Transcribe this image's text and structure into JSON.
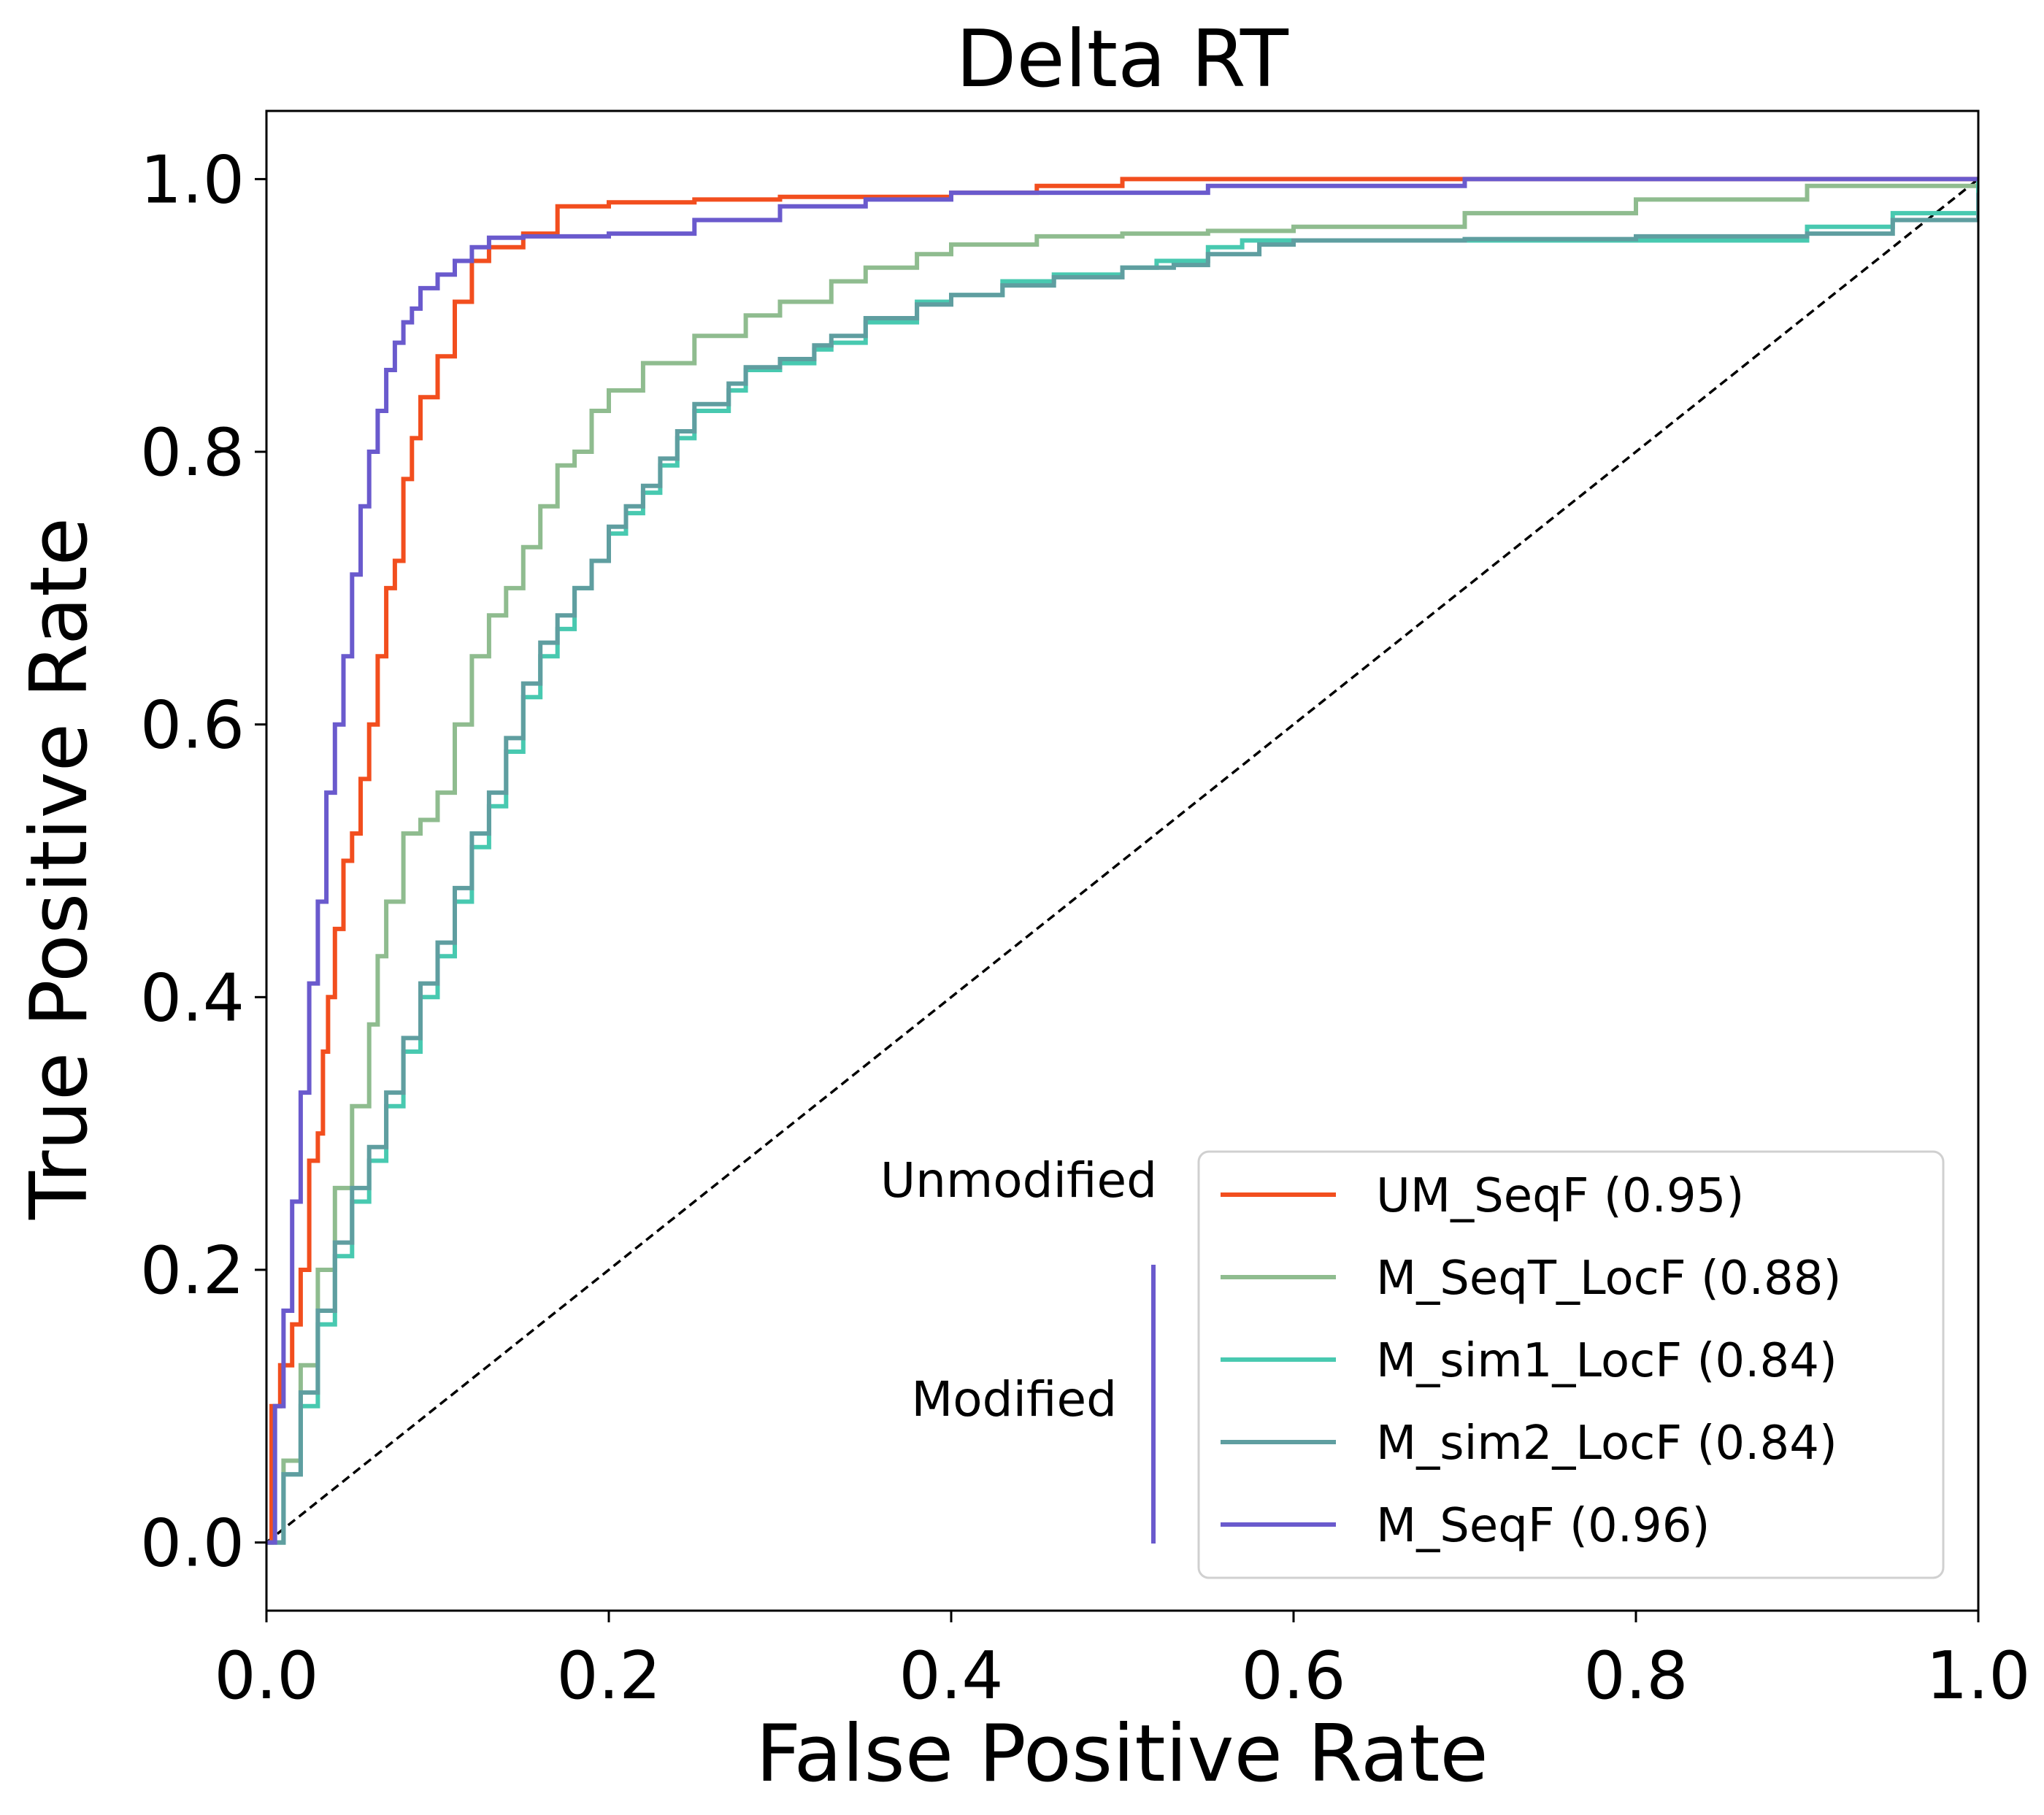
{
  "chart_data": {
    "type": "line",
    "title": "Delta RT",
    "xlabel": "False Positive Rate",
    "ylabel": "True Positive Rate",
    "xlim": [
      0.0,
      1.0
    ],
    "ylim": [
      -0.05,
      1.05
    ],
    "xticks": [
      "0.0",
      "0.2",
      "0.4",
      "0.6",
      "0.8",
      "1.0"
    ],
    "yticks": [
      "0.0",
      "0.2",
      "0.4",
      "0.6",
      "0.8",
      "1.0"
    ],
    "grid": false,
    "legend_position": "lower-right",
    "legend_groups": [
      {
        "label": "Unmodified",
        "series": [
          0
        ]
      },
      {
        "label": "Modified",
        "series": [
          1,
          2,
          3,
          4
        ],
        "bar_color": "#6A5ACD"
      }
    ],
    "diagonal": {
      "style": "dashed",
      "color": "#000000",
      "points": [
        [
          0,
          0
        ],
        [
          1,
          1
        ]
      ]
    },
    "series": [
      {
        "name": "UM_SeqF (0.95)",
        "color": "#F24E1E",
        "points": [
          [
            0,
            0
          ],
          [
            0.003,
            0.1
          ],
          [
            0.008,
            0.13
          ],
          [
            0.015,
            0.16
          ],
          [
            0.02,
            0.2
          ],
          [
            0.025,
            0.28
          ],
          [
            0.03,
            0.3
          ],
          [
            0.033,
            0.36
          ],
          [
            0.036,
            0.4
          ],
          [
            0.04,
            0.45
          ],
          [
            0.045,
            0.5
          ],
          [
            0.05,
            0.52
          ],
          [
            0.055,
            0.56
          ],
          [
            0.06,
            0.6
          ],
          [
            0.065,
            0.65
          ],
          [
            0.07,
            0.7
          ],
          [
            0.075,
            0.72
          ],
          [
            0.08,
            0.78
          ],
          [
            0.085,
            0.81
          ],
          [
            0.09,
            0.84
          ],
          [
            0.1,
            0.87
          ],
          [
            0.11,
            0.91
          ],
          [
            0.12,
            0.94
          ],
          [
            0.13,
            0.95
          ],
          [
            0.15,
            0.96
          ],
          [
            0.17,
            0.98
          ],
          [
            0.2,
            0.983
          ],
          [
            0.25,
            0.985
          ],
          [
            0.3,
            0.987
          ],
          [
            0.4,
            0.99
          ],
          [
            0.45,
            0.995
          ],
          [
            0.5,
            1.0
          ],
          [
            0.7,
            1.0
          ],
          [
            1.0,
            1.0
          ]
        ]
      },
      {
        "name": "M_SeqT_LocF (0.88)",
        "color": "#8FBC8F",
        "points": [
          [
            0,
            0
          ],
          [
            0.01,
            0.06
          ],
          [
            0.02,
            0.13
          ],
          [
            0.03,
            0.2
          ],
          [
            0.04,
            0.26
          ],
          [
            0.05,
            0.32
          ],
          [
            0.06,
            0.38
          ],
          [
            0.065,
            0.43
          ],
          [
            0.07,
            0.47
          ],
          [
            0.08,
            0.52
          ],
          [
            0.09,
            0.53
          ],
          [
            0.1,
            0.55
          ],
          [
            0.11,
            0.6
          ],
          [
            0.12,
            0.65
          ],
          [
            0.13,
            0.68
          ],
          [
            0.14,
            0.7
          ],
          [
            0.15,
            0.73
          ],
          [
            0.16,
            0.76
          ],
          [
            0.17,
            0.79
          ],
          [
            0.18,
            0.8
          ],
          [
            0.19,
            0.83
          ],
          [
            0.2,
            0.845
          ],
          [
            0.22,
            0.865
          ],
          [
            0.25,
            0.885
          ],
          [
            0.28,
            0.9
          ],
          [
            0.3,
            0.91
          ],
          [
            0.33,
            0.925
          ],
          [
            0.35,
            0.935
          ],
          [
            0.38,
            0.945
          ],
          [
            0.4,
            0.952
          ],
          [
            0.45,
            0.958
          ],
          [
            0.5,
            0.96
          ],
          [
            0.55,
            0.962
          ],
          [
            0.6,
            0.965
          ],
          [
            0.7,
            0.975
          ],
          [
            0.8,
            0.985
          ],
          [
            0.9,
            0.995
          ],
          [
            1.0,
            1.0
          ]
        ]
      },
      {
        "name": "M_sim1_LocF (0.84)",
        "color": "#48C9B0",
        "points": [
          [
            0,
            0
          ],
          [
            0.01,
            0.05
          ],
          [
            0.02,
            0.1
          ],
          [
            0.03,
            0.16
          ],
          [
            0.04,
            0.21
          ],
          [
            0.05,
            0.25
          ],
          [
            0.06,
            0.28
          ],
          [
            0.07,
            0.32
          ],
          [
            0.08,
            0.36
          ],
          [
            0.09,
            0.4
          ],
          [
            0.1,
            0.43
          ],
          [
            0.11,
            0.47
          ],
          [
            0.12,
            0.51
          ],
          [
            0.13,
            0.54
          ],
          [
            0.14,
            0.58
          ],
          [
            0.15,
            0.62
          ],
          [
            0.16,
            0.65
          ],
          [
            0.17,
            0.67
          ],
          [
            0.18,
            0.7
          ],
          [
            0.19,
            0.72
          ],
          [
            0.2,
            0.74
          ],
          [
            0.21,
            0.755
          ],
          [
            0.22,
            0.77
          ],
          [
            0.23,
            0.79
          ],
          [
            0.24,
            0.81
          ],
          [
            0.25,
            0.83
          ],
          [
            0.27,
            0.845
          ],
          [
            0.28,
            0.86
          ],
          [
            0.3,
            0.865
          ],
          [
            0.32,
            0.875
          ],
          [
            0.33,
            0.88
          ],
          [
            0.35,
            0.895
          ],
          [
            0.38,
            0.91
          ],
          [
            0.4,
            0.915
          ],
          [
            0.43,
            0.925
          ],
          [
            0.46,
            0.93
          ],
          [
            0.5,
            0.935
          ],
          [
            0.52,
            0.94
          ],
          [
            0.55,
            0.95
          ],
          [
            0.57,
            0.955
          ],
          [
            0.6,
            0.955
          ],
          [
            0.7,
            0.955
          ],
          [
            0.8,
            0.955
          ],
          [
            0.85,
            0.955
          ],
          [
            0.9,
            0.965
          ],
          [
            0.95,
            0.975
          ],
          [
            1.0,
            1.0
          ]
        ]
      },
      {
        "name": "M_sim2_LocF (0.84)",
        "color": "#5F9EA0",
        "points": [
          [
            0,
            0
          ],
          [
            0.01,
            0.05
          ],
          [
            0.02,
            0.11
          ],
          [
            0.03,
            0.17
          ],
          [
            0.04,
            0.22
          ],
          [
            0.05,
            0.26
          ],
          [
            0.06,
            0.29
          ],
          [
            0.07,
            0.33
          ],
          [
            0.08,
            0.37
          ],
          [
            0.09,
            0.41
          ],
          [
            0.1,
            0.44
          ],
          [
            0.11,
            0.48
          ],
          [
            0.12,
            0.52
          ],
          [
            0.13,
            0.55
          ],
          [
            0.14,
            0.59
          ],
          [
            0.15,
            0.63
          ],
          [
            0.16,
            0.66
          ],
          [
            0.17,
            0.68
          ],
          [
            0.18,
            0.7
          ],
          [
            0.19,
            0.72
          ],
          [
            0.2,
            0.745
          ],
          [
            0.21,
            0.76
          ],
          [
            0.22,
            0.775
          ],
          [
            0.23,
            0.795
          ],
          [
            0.24,
            0.815
          ],
          [
            0.25,
            0.835
          ],
          [
            0.27,
            0.85
          ],
          [
            0.28,
            0.862
          ],
          [
            0.3,
            0.868
          ],
          [
            0.32,
            0.878
          ],
          [
            0.33,
            0.885
          ],
          [
            0.35,
            0.898
          ],
          [
            0.38,
            0.908
          ],
          [
            0.4,
            0.915
          ],
          [
            0.43,
            0.922
          ],
          [
            0.46,
            0.928
          ],
          [
            0.5,
            0.935
          ],
          [
            0.53,
            0.937
          ],
          [
            0.55,
            0.945
          ],
          [
            0.58,
            0.952
          ],
          [
            0.6,
            0.955
          ],
          [
            0.7,
            0.956
          ],
          [
            0.8,
            0.958
          ],
          [
            0.85,
            0.958
          ],
          [
            0.9,
            0.96
          ],
          [
            0.95,
            0.97
          ],
          [
            1.0,
            0.99
          ]
        ]
      },
      {
        "name": "M_SeqF (0.96)",
        "color": "#6A5ACD",
        "points": [
          [
            0,
            0
          ],
          [
            0.005,
            0.1
          ],
          [
            0.01,
            0.17
          ],
          [
            0.015,
            0.25
          ],
          [
            0.02,
            0.33
          ],
          [
            0.025,
            0.41
          ],
          [
            0.03,
            0.47
          ],
          [
            0.035,
            0.55
          ],
          [
            0.04,
            0.6
          ],
          [
            0.045,
            0.65
          ],
          [
            0.05,
            0.71
          ],
          [
            0.055,
            0.76
          ],
          [
            0.06,
            0.8
          ],
          [
            0.065,
            0.83
          ],
          [
            0.07,
            0.86
          ],
          [
            0.075,
            0.88
          ],
          [
            0.08,
            0.895
          ],
          [
            0.085,
            0.905
          ],
          [
            0.09,
            0.92
          ],
          [
            0.1,
            0.93
          ],
          [
            0.11,
            0.94
          ],
          [
            0.12,
            0.95
          ],
          [
            0.13,
            0.957
          ],
          [
            0.15,
            0.958
          ],
          [
            0.2,
            0.96
          ],
          [
            0.25,
            0.97
          ],
          [
            0.3,
            0.98
          ],
          [
            0.35,
            0.985
          ],
          [
            0.4,
            0.99
          ],
          [
            0.45,
            0.99
          ],
          [
            0.5,
            0.99
          ],
          [
            0.55,
            0.995
          ],
          [
            0.7,
            1.0
          ],
          [
            1.0,
            1.0
          ]
        ]
      }
    ]
  }
}
